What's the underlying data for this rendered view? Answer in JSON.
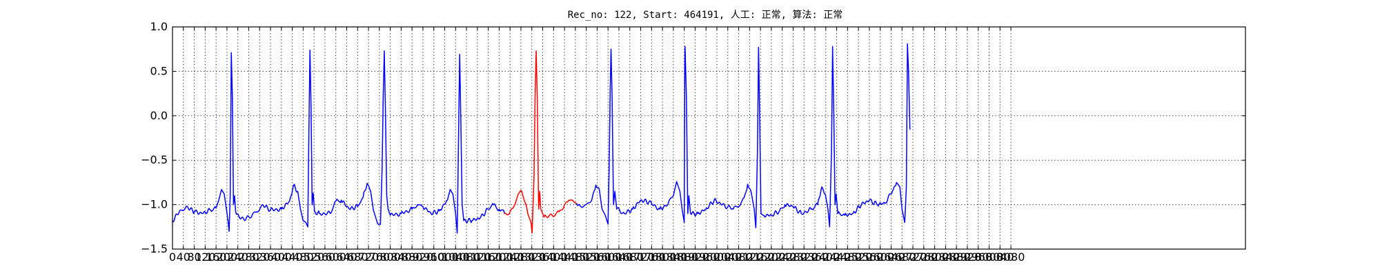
{
  "chart_data": {
    "type": "line",
    "title": "Rec_no: 122, Start: 464191, 人工: 正常, 算法: 正常",
    "xlabel": "",
    "ylabel": "",
    "xlim": [
      0,
      3080
    ],
    "ylim": [
      -1.5,
      1.0
    ],
    "grid": true,
    "legend": "none",
    "xticks": [
      0,
      40,
      80,
      120,
      160,
      200,
      240,
      280,
      320,
      360,
      400,
      440,
      480,
      520,
      560,
      600,
      640,
      680,
      720,
      760,
      800,
      840,
      880,
      920,
      960,
      1000,
      1040,
      1080,
      1120,
      1160,
      1200,
      1240,
      1280,
      1320,
      1360,
      1400,
      1440,
      1480,
      1520,
      1560,
      1600,
      1640,
      1680,
      1720,
      1760,
      1800,
      1840,
      1880,
      1920,
      1960,
      2000,
      2040,
      2080,
      2120,
      2160,
      2200,
      2240,
      2280,
      2320,
      2360,
      2400,
      2440,
      2480,
      2520,
      2560,
      2600,
      2640,
      2680,
      2720,
      2760,
      2800,
      2840,
      2880,
      2920,
      2960,
      3000,
      3040,
      3080
    ],
    "yticks": [
      -1.5,
      -1.0,
      -0.5,
      0.0,
      0.5,
      1.0
    ],
    "ytick_labels": [
      "−1.5",
      "−1.0",
      "−0.5",
      "0.0",
      "0.5",
      "1.0"
    ],
    "beat_peaks": [
      {
        "x": 216,
        "y": 0.71
      },
      {
        "x": 505,
        "y": 0.74
      },
      {
        "x": 778,
        "y": 0.73
      },
      {
        "x": 1055,
        "y": 0.69
      },
      {
        "x": 1336,
        "y": 0.73
      },
      {
        "x": 1611,
        "y": 0.75
      },
      {
        "x": 1883,
        "y": 0.78
      },
      {
        "x": 2153,
        "y": 0.77
      },
      {
        "x": 2425,
        "y": 0.78
      },
      {
        "x": 2700,
        "y": 0.81
      }
    ],
    "series": [
      {
        "color": "#0000ff",
        "points": [
          [
            0,
            -1.18
          ],
          [
            30,
            -1.06
          ],
          [
            50,
            -1.02
          ],
          [
            80,
            -1.08
          ],
          [
            110,
            -1.1
          ],
          [
            140,
            -1.06
          ],
          [
            160,
            -1.04
          ],
          [
            170,
            -0.95
          ],
          [
            180,
            -0.83
          ],
          [
            190,
            -0.88
          ],
          [
            198,
            -1.05
          ],
          [
            204,
            -1.18
          ],
          [
            208,
            -1.3
          ],
          [
            212,
            -0.9
          ],
          [
            216,
            0.71
          ],
          [
            220,
            0.2
          ],
          [
            224,
            -1.0
          ],
          [
            228,
            -0.9
          ],
          [
            232,
            -1.08
          ],
          [
            250,
            -1.16
          ],
          [
            290,
            -1.14
          ],
          [
            310,
            -1.08
          ],
          [
            330,
            -1.0
          ],
          [
            360,
            -1.06
          ],
          [
            400,
            -1.05
          ],
          [
            430,
            -0.96
          ],
          [
            445,
            -0.78
          ],
          [
            460,
            -0.85
          ],
          [
            470,
            -1.05
          ],
          [
            480,
            -1.18
          ],
          [
            490,
            -1.2
          ],
          [
            497,
            -1.25
          ],
          [
            501,
            -0.2
          ],
          [
            505,
            0.74
          ],
          [
            509,
            0.1
          ],
          [
            513,
            -1.0
          ],
          [
            517,
            -0.87
          ],
          [
            522,
            -1.08
          ],
          [
            540,
            -1.1
          ],
          [
            580,
            -1.1
          ],
          [
            600,
            -0.96
          ],
          [
            620,
            -0.95
          ],
          [
            650,
            -1.05
          ],
          [
            680,
            -1.02
          ],
          [
            700,
            -0.92
          ],
          [
            715,
            -0.76
          ],
          [
            728,
            -0.85
          ],
          [
            738,
            -1.06
          ],
          [
            750,
            -1.18
          ],
          [
            764,
            -1.22
          ],
          [
            770,
            -0.6
          ],
          [
            774,
            0.2
          ],
          [
            778,
            0.73
          ],
          [
            782,
            0.1
          ],
          [
            787,
            -0.9
          ],
          [
            792,
            -1.05
          ],
          [
            800,
            -1.12
          ],
          [
            840,
            -1.1
          ],
          [
            880,
            -1.05
          ],
          [
            900,
            -1.0
          ],
          [
            920,
            -1.02
          ],
          [
            950,
            -1.1
          ],
          [
            980,
            -1.07
          ],
          [
            1010,
            -0.95
          ],
          [
            1020,
            -0.83
          ],
          [
            1030,
            -0.88
          ],
          [
            1040,
            -1.1
          ],
          [
            1046,
            -1.32
          ],
          [
            1051,
            -0.2
          ],
          [
            1055,
            0.69
          ],
          [
            1059,
            0.0
          ],
          [
            1064,
            -1.0
          ],
          [
            1070,
            -1.18
          ],
          [
            1100,
            -1.18
          ],
          [
            1130,
            -1.15
          ],
          [
            1160,
            -1.05
          ],
          [
            1180,
            -1.0
          ],
          [
            1200,
            -1.05
          ],
          [
            1220,
            -1.1
          ]
        ]
      },
      {
        "color": "#ff0000",
        "points": [
          [
            1220,
            -1.1
          ],
          [
            1240,
            -1.08
          ],
          [
            1258,
            -1.0
          ],
          [
            1270,
            -0.88
          ],
          [
            1283,
            -0.85
          ],
          [
            1292,
            -0.95
          ],
          [
            1305,
            -1.1
          ],
          [
            1317,
            -1.2
          ],
          [
            1321,
            -1.32
          ],
          [
            1328,
            -0.7
          ],
          [
            1332,
            0.2
          ],
          [
            1336,
            0.73
          ],
          [
            1340,
            0.2
          ],
          [
            1345,
            -1.05
          ],
          [
            1349,
            -0.85
          ],
          [
            1353,
            -1.05
          ],
          [
            1365,
            -1.14
          ],
          [
            1400,
            -1.13
          ],
          [
            1420,
            -1.08
          ],
          [
            1440,
            -1.0
          ],
          [
            1455,
            -0.95
          ],
          [
            1475,
            -0.97
          ],
          [
            1485,
            -0.99
          ]
        ]
      },
      {
        "color": "#0000ff",
        "points": [
          [
            1485,
            -0.99
          ],
          [
            1500,
            -1.02
          ],
          [
            1520,
            -1.0
          ],
          [
            1540,
            -0.95
          ],
          [
            1555,
            -0.78
          ],
          [
            1568,
            -0.83
          ],
          [
            1578,
            -1.05
          ],
          [
            1590,
            -1.12
          ],
          [
            1600,
            -1.22
          ],
          [
            1604,
            -0.6
          ],
          [
            1608,
            0.3
          ],
          [
            1611,
            0.75
          ],
          [
            1615,
            0.2
          ],
          [
            1620,
            -1.0
          ],
          [
            1625,
            -0.85
          ],
          [
            1632,
            -1.05
          ],
          [
            1660,
            -1.1
          ],
          [
            1690,
            -1.05
          ],
          [
            1720,
            -0.95
          ],
          [
            1750,
            -0.97
          ],
          [
            1790,
            -1.05
          ],
          [
            1820,
            -1.0
          ],
          [
            1840,
            -0.9
          ],
          [
            1852,
            -0.74
          ],
          [
            1864,
            -0.85
          ],
          [
            1872,
            -1.05
          ],
          [
            1880,
            -1.2
          ],
          [
            1882,
            0.6
          ],
          [
            1883,
            0.78
          ],
          [
            1888,
            0.2
          ],
          [
            1893,
            -1.1
          ],
          [
            1897,
            -0.9
          ],
          [
            1903,
            -1.1
          ],
          [
            1930,
            -1.1
          ],
          [
            1960,
            -1.05
          ],
          [
            1990,
            -0.95
          ],
          [
            2020,
            -1.0
          ],
          [
            2060,
            -1.05
          ],
          [
            2080,
            -1.02
          ],
          [
            2100,
            -0.92
          ],
          [
            2113,
            -0.77
          ],
          [
            2126,
            -0.86
          ],
          [
            2137,
            -1.05
          ],
          [
            2143,
            -1.26
          ],
          [
            2149,
            -0.4
          ],
          [
            2153,
            0.77
          ],
          [
            2157,
            0.0
          ],
          [
            2162,
            -1.1
          ],
          [
            2170,
            -1.12
          ],
          [
            2200,
            -1.12
          ],
          [
            2230,
            -1.07
          ],
          [
            2250,
            -1.0
          ],
          [
            2280,
            -1.02
          ],
          [
            2310,
            -1.1
          ],
          [
            2350,
            -1.05
          ],
          [
            2370,
            -1.0
          ],
          [
            2385,
            -0.8
          ],
          [
            2398,
            -0.88
          ],
          [
            2408,
            -1.05
          ],
          [
            2414,
            -1.25
          ],
          [
            2421,
            -0.4
          ],
          [
            2425,
            0.78
          ],
          [
            2429,
            0.1
          ],
          [
            2434,
            -1.0
          ],
          [
            2438,
            -0.88
          ],
          [
            2444,
            -1.1
          ],
          [
            2470,
            -1.12
          ],
          [
            2500,
            -1.1
          ],
          [
            2530,
            -1.0
          ],
          [
            2560,
            -0.95
          ],
          [
            2590,
            -1.0
          ],
          [
            2620,
            -0.98
          ],
          [
            2645,
            -0.85
          ],
          [
            2660,
            -0.75
          ],
          [
            2672,
            -0.8
          ],
          [
            2680,
            -1.05
          ],
          [
            2690,
            -1.2
          ],
          [
            2696,
            -0.8
          ],
          [
            2700,
            0.81
          ],
          [
            2704,
            0.5
          ],
          [
            2709,
            -0.15
          ]
        ]
      }
    ]
  }
}
